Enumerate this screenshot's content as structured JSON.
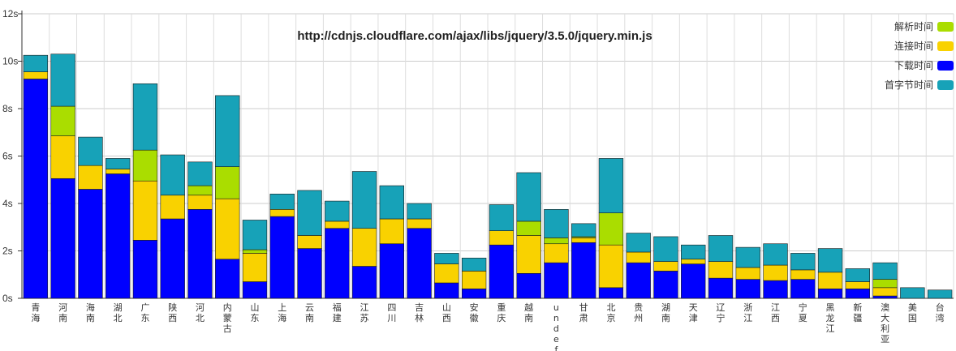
{
  "chart_data": {
    "type": "bar",
    "stacked": true,
    "title": "http://cdnjs.cloudflare.com/ajax/libs/jquery/3.5.0/jquery.min.js",
    "xlabel": "",
    "ylabel": "",
    "ylim": [
      0,
      12
    ],
    "yticks": [
      "0s",
      "2s",
      "4s",
      "6s",
      "8s",
      "10s",
      "12s"
    ],
    "grid": true,
    "legend_position": "top-right",
    "categories": [
      "青海",
      "河南",
      "海南",
      "湖北",
      "广东",
      "陕西",
      "河北",
      "内蒙古",
      "山东",
      "上海",
      "云南",
      "福建",
      "江苏",
      "四川",
      "吉林",
      "山西",
      "安徽",
      "重庆",
      "越南",
      "undef",
      "甘肃",
      "北京",
      "贵州",
      "湖南",
      "天津",
      "辽宁",
      "浙江",
      "江西",
      "宁夏",
      "黑龙江",
      "新疆",
      "澳大利亚",
      "美国",
      "台湾"
    ],
    "series": [
      {
        "name": "下载时间",
        "color": "#0000ff",
        "values": [
          9.25,
          5.05,
          4.6,
          5.25,
          2.45,
          3.35,
          3.75,
          1.65,
          0.7,
          3.45,
          2.1,
          2.95,
          1.35,
          2.3,
          2.95,
          0.65,
          0.4,
          2.25,
          1.05,
          1.5,
          2.35,
          0.45,
          1.5,
          1.15,
          1.45,
          0.85,
          0.8,
          0.75,
          0.8,
          0.4,
          0.4,
          0.1,
          0,
          0
        ]
      },
      {
        "name": "连接时间",
        "color": "#f9d200",
        "values": [
          0.3,
          1.8,
          1.0,
          0.2,
          2.5,
          1.0,
          0.6,
          2.55,
          1.2,
          0.3,
          0.55,
          0.3,
          1.6,
          1.05,
          0.4,
          0.8,
          0.75,
          0.6,
          1.6,
          0.8,
          0.2,
          1.8,
          0.45,
          0.4,
          0.2,
          0.7,
          0.5,
          0.65,
          0.4,
          0.7,
          0.3,
          0.35,
          0,
          0
        ]
      },
      {
        "name": "解析时间",
        "color": "#aadd00",
        "values": [
          0,
          1.25,
          0,
          0,
          1.3,
          0,
          0.4,
          1.35,
          0.15,
          0,
          0,
          0,
          0,
          0,
          0,
          0,
          0,
          0,
          0.6,
          0.25,
          0.05,
          1.35,
          0,
          0,
          0,
          0,
          0,
          0,
          0,
          0,
          0,
          0.35,
          0,
          0
        ]
      },
      {
        "name": "首字节时间",
        "color": "#17a2b8",
        "values": [
          0.7,
          2.2,
          1.2,
          0.45,
          2.8,
          1.7,
          1.0,
          3.0,
          1.25,
          0.65,
          1.9,
          0.85,
          2.4,
          1.4,
          0.65,
          0.45,
          0.55,
          1.1,
          2.05,
          1.2,
          0.55,
          2.3,
          0.8,
          1.05,
          0.6,
          1.1,
          0.85,
          0.9,
          0.7,
          1.0,
          0.55,
          0.7,
          0.45,
          0.35
        ]
      }
    ]
  }
}
